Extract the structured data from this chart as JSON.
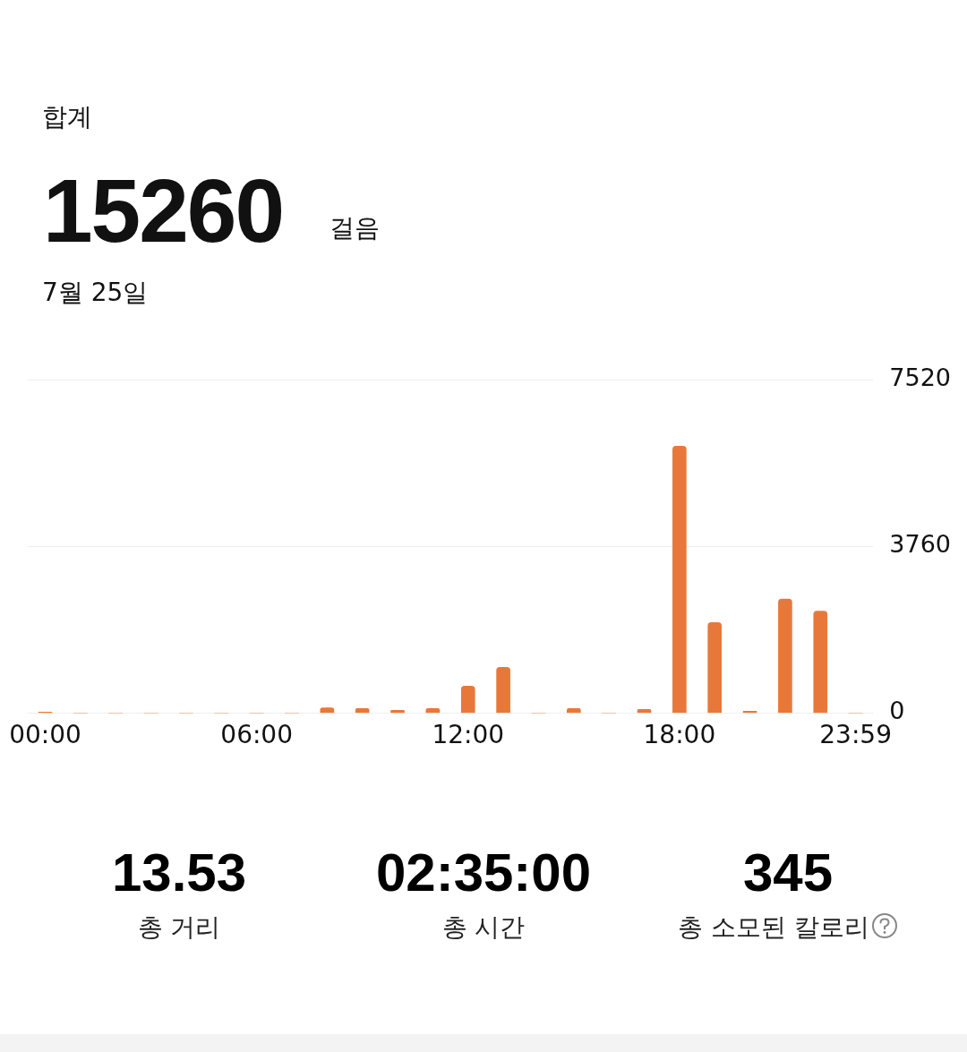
{
  "chart_data": {
    "type": "bar",
    "title": "합계",
    "annotations": [
      "15260",
      "걸음",
      "7월 25일",
      "13.53",
      "총 거리",
      "02:35:00",
      "총 시간",
      "345",
      "총 소모된 칼로리"
    ],
    "categories": [
      "00:00",
      null,
      null,
      null,
      null,
      null,
      "06:00",
      null,
      null,
      null,
      null,
      null,
      "12:00",
      null,
      null,
      null,
      null,
      null,
      "18:00",
      null,
      null,
      null,
      null,
      "23:59"
    ],
    "values": [
      20,
      0,
      0,
      0,
      0,
      0,
      0,
      0,
      120,
      100,
      60,
      100,
      610,
      1030,
      0,
      100,
      0,
      80,
      6020,
      2040,
      40,
      2570,
      2300,
      0
    ],
    "color": "#e8783a",
    "ylim": [
      0,
      7520
    ],
    "yticks": [
      0,
      3760,
      7520
    ],
    "grid": "y"
  }
}
